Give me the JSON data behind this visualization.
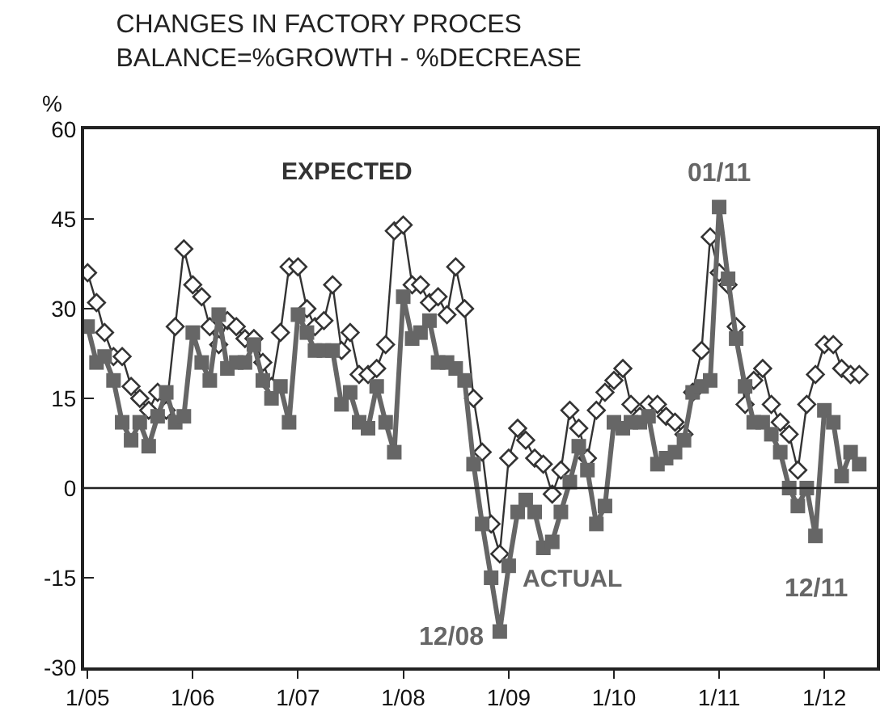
{
  "chart_data": {
    "type": "line",
    "title": "CHANGES IN FACTORY PROCES\nBALANCE=%GROWTH - %DECREASE",
    "ylabel": "%",
    "x": [
      "2005-01",
      "2005-02",
      "2005-03",
      "2005-04",
      "2005-05",
      "2005-06",
      "2005-07",
      "2005-08",
      "2005-09",
      "2005-10",
      "2005-11",
      "2005-12",
      "2006-01",
      "2006-02",
      "2006-03",
      "2006-04",
      "2006-05",
      "2006-06",
      "2006-07",
      "2006-08",
      "2006-09",
      "2006-10",
      "2006-11",
      "2006-12",
      "2007-01",
      "2007-02",
      "2007-03",
      "2007-04",
      "2007-05",
      "2007-06",
      "2007-07",
      "2007-08",
      "2007-09",
      "2007-10",
      "2007-11",
      "2007-12",
      "2008-01",
      "2008-02",
      "2008-03",
      "2008-04",
      "2008-05",
      "2008-06",
      "2008-07",
      "2008-08",
      "2008-09",
      "2008-10",
      "2008-11",
      "2008-12",
      "2009-01",
      "2009-02",
      "2009-03",
      "2009-04",
      "2009-05",
      "2009-06",
      "2009-07",
      "2009-08",
      "2009-09",
      "2009-10",
      "2009-11",
      "2009-12",
      "2010-01",
      "2010-02",
      "2010-03",
      "2010-04",
      "2010-05",
      "2010-06",
      "2010-07",
      "2010-08",
      "2010-09",
      "2010-10",
      "2010-11",
      "2010-12",
      "2011-01",
      "2011-02",
      "2011-03",
      "2011-04",
      "2011-05",
      "2011-06",
      "2011-07",
      "2011-08",
      "2011-09",
      "2011-10",
      "2011-11",
      "2011-12",
      "2012-01",
      "2012-02",
      "2012-03",
      "2012-04",
      "2012-05"
    ],
    "series": [
      {
        "name": "EXPECTED",
        "color": "#333333",
        "marker": "diamond",
        "values": [
          36,
          31,
          26,
          22,
          22,
          17,
          15,
          13,
          16,
          13,
          27,
          40,
          34,
          32,
          27,
          24,
          28,
          27,
          25,
          25,
          21,
          17,
          26,
          37,
          37,
          30,
          27,
          28,
          34,
          23,
          26,
          19,
          19,
          20,
          24,
          43,
          44,
          34,
          34,
          31,
          32,
          29,
          37,
          30,
          15,
          6,
          -6,
          -11,
          5,
          10,
          8,
          5,
          4,
          -1,
          3,
          13,
          10,
          5,
          13,
          16,
          18,
          20,
          14,
          12,
          14,
          14,
          12,
          11,
          9,
          16,
          23,
          42,
          36,
          34,
          27,
          14,
          18,
          20,
          14,
          11,
          9,
          3,
          14,
          19,
          24,
          24,
          20,
          19,
          19
        ]
      },
      {
        "name": "ACTUAL",
        "color": "#666666",
        "marker": "square",
        "values": [
          27,
          21,
          22,
          18,
          11,
          8,
          11,
          7,
          12,
          16,
          11,
          12,
          26,
          21,
          18,
          29,
          20,
          21,
          21,
          24,
          18,
          15,
          17,
          11,
          29,
          26,
          23,
          23,
          23,
          14,
          16,
          11,
          10,
          17,
          11,
          6,
          32,
          25,
          26,
          28,
          21,
          21,
          20,
          18,
          4,
          -6,
          -15,
          -24,
          -13,
          -4,
          -2,
          -4,
          -10,
          -9,
          -4,
          1,
          7,
          3,
          -6,
          -3,
          11,
          10,
          11,
          11,
          12,
          4,
          5,
          6,
          8,
          16,
          17,
          18,
          47,
          35,
          25,
          17,
          11,
          11,
          9,
          6,
          0,
          -3,
          0,
          -8,
          13,
          11,
          2,
          6,
          4
        ]
      }
    ],
    "annotations": [
      {
        "text": "12/08",
        "x": "2008-12",
        "y": -24
      },
      {
        "text": "01/11",
        "x": "2011-01",
        "y": 47
      },
      {
        "text": "12/11",
        "x": "2011-12",
        "y": -8
      }
    ],
    "ref_lines": [
      {
        "axis": "y",
        "value": 0,
        "color": "#222222"
      }
    ],
    "xlim": [
      "2004-12-20",
      "2012-07-01"
    ],
    "xticks": [
      {
        "value": "2005-01",
        "label": "1/05"
      },
      {
        "value": "2006-01",
        "label": "1/06"
      },
      {
        "value": "2007-01",
        "label": "1/07"
      },
      {
        "value": "2008-01",
        "label": "1/08"
      },
      {
        "value": "2009-01",
        "label": "1/09"
      },
      {
        "value": "2010-01",
        "label": "1/10"
      },
      {
        "value": "2011-01",
        "label": "1/11"
      },
      {
        "value": "2012-01",
        "label": "1/12"
      }
    ],
    "ylim": [
      -30,
      60
    ],
    "yticks": [
      -30,
      -15,
      0,
      15,
      30,
      45,
      60
    ]
  }
}
